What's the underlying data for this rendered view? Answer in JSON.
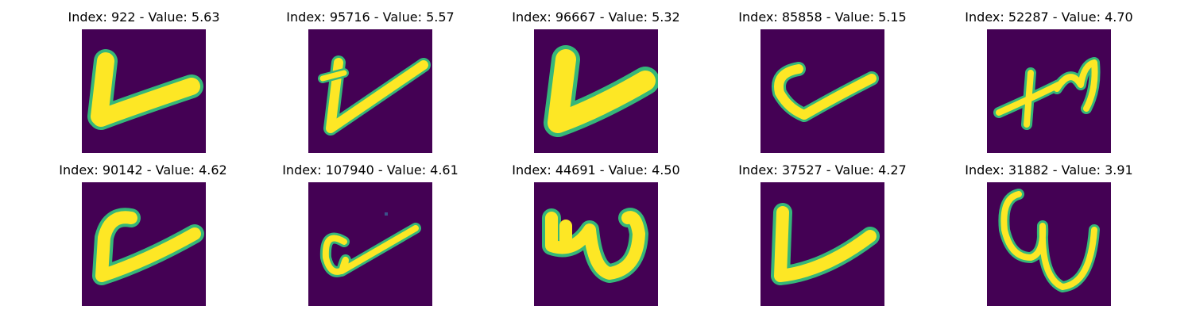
{
  "colors": {
    "background": "#440154",
    "stroke_core": "#fde725",
    "stroke_edge": "#35b779"
  },
  "panels": [
    {
      "title": "Index: 922 - Value: 5.63",
      "glyph": "v"
    },
    {
      "title": "Index: 95716 - Value: 5.57",
      "glyph": "v"
    },
    {
      "title": "Index: 96667 - Value: 5.32",
      "glyph": "v"
    },
    {
      "title": "Index: 85858 - Value: 5.15",
      "glyph": "v"
    },
    {
      "title": "Index: 52287 - Value: 4.70",
      "glyph": "xm"
    },
    {
      "title": "Index: 90142 - Value: 4.62",
      "glyph": "v"
    },
    {
      "title": "Index: 107940 - Value: 4.61",
      "glyph": "a"
    },
    {
      "title": "Index: 44691 - Value: 4.50",
      "glyph": "w"
    },
    {
      "title": "Index: 37527 - Value: 4.27",
      "glyph": "L"
    },
    {
      "title": "Index: 31882 - Value: 3.91",
      "glyph": "w"
    }
  ]
}
